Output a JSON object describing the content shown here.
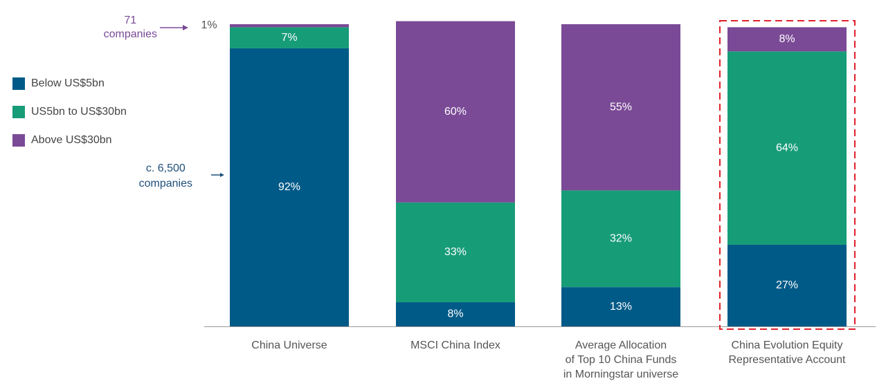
{
  "chart_data": {
    "type": "stacked-bar",
    "categories": [
      "China Universe",
      "MSCI China Index",
      "Average Allocation\nof Top 10 China Funds\nin Morningstar universe",
      "China Evolution Equity\nRepresentative Account"
    ],
    "series": [
      {
        "name": "Below US$5bn",
        "color": "#005a87",
        "values": [
          92,
          8,
          13,
          27
        ],
        "value_labels": [
          "92%",
          "8%",
          "13%",
          "27%"
        ]
      },
      {
        "name": "US5bn to US$30bn",
        "color": "#179c78",
        "values": [
          7,
          33,
          32,
          64
        ],
        "value_labels": [
          "7%",
          "33%",
          "32%",
          "64%"
        ]
      },
      {
        "name": "Above US$30bn",
        "color": "#7a4a96",
        "values": [
          1,
          60,
          55,
          8
        ],
        "value_labels": [
          "1%",
          "60%",
          "55%",
          "8%"
        ]
      }
    ],
    "ylim": [
      0,
      100
    ],
    "legend": "left",
    "annotations": [
      {
        "text": "71\ncompanies",
        "color": "#7a4a96"
      },
      {
        "text": "c. 6,500\ncompanies",
        "color": "#1e4f7a"
      }
    ]
  }
}
